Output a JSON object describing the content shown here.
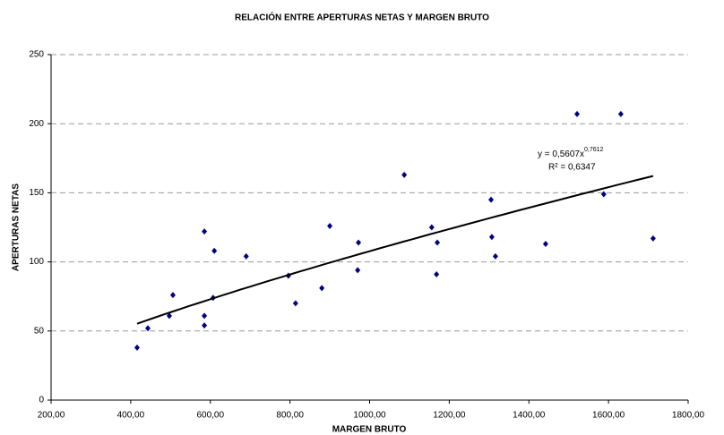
{
  "chart_data": {
    "type": "scatter",
    "title": "RELACIÓN ENTRE APERTURAS NETAS Y MARGEN BRUTO",
    "x_label": "MARGEN BRUTO",
    "y_label": "APERTURAS NETAS",
    "series": [
      {
        "color": "#000080",
        "x": [
          416,
          443,
          497,
          506,
          607,
          610,
          585,
          585,
          585,
          690,
          796,
          814,
          900,
          880,
          972,
          970,
          1087,
          1156,
          1170,
          1168,
          1305,
          1307,
          1316,
          1442,
          1521,
          1588,
          1631,
          1712
        ],
        "values": [
          38,
          52,
          61,
          76,
          74,
          108,
          122,
          61,
          54,
          104,
          90,
          70,
          126,
          81,
          114,
          94,
          163,
          125,
          114,
          91,
          145,
          118,
          104,
          113,
          207,
          149,
          207,
          117
        ]
      }
    ],
    "trendline": {
      "type": "power",
      "coefficient": 0.5607,
      "exponent": 0.7612,
      "color": "#000000",
      "equation_label": "y = 0,5607x",
      "exponent_label": "0,7612",
      "r2_label": "R² = 0,6347"
    },
    "xlim": [
      200,
      1800
    ],
    "xticks": [
      {
        "value": 200,
        "label": "200,00"
      },
      {
        "value": 400,
        "label": "400,00"
      },
      {
        "value": 600,
        "label": "600,00"
      },
      {
        "value": 800,
        "label": "800,00"
      },
      {
        "value": 1000,
        "label": "1000,00"
      },
      {
        "value": 1200,
        "label": "1200,00"
      },
      {
        "value": 1400,
        "label": "1400,00"
      },
      {
        "value": 1600,
        "label": "1600,00"
      },
      {
        "value": 1800,
        "label": "1800,00"
      }
    ],
    "ylim": [
      0,
      250
    ],
    "yticks": [
      0,
      50,
      100,
      150,
      200,
      250
    ],
    "grid": true
  }
}
